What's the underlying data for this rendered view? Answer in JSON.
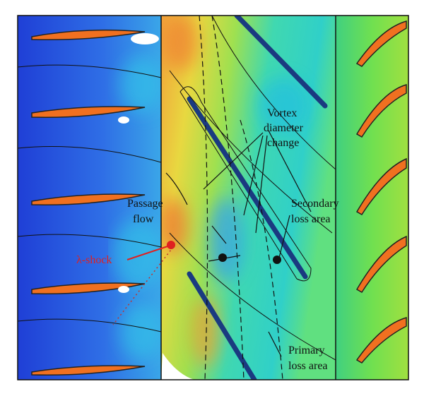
{
  "annotations": {
    "vortex": [
      "Vortex",
      "diameter",
      "change"
    ],
    "passage": [
      "Passage",
      "flow"
    ],
    "secondary": [
      "Secondary",
      "loss area"
    ],
    "shock": "λ-shock",
    "primary": [
      "Primary",
      "loss area"
    ]
  }
}
